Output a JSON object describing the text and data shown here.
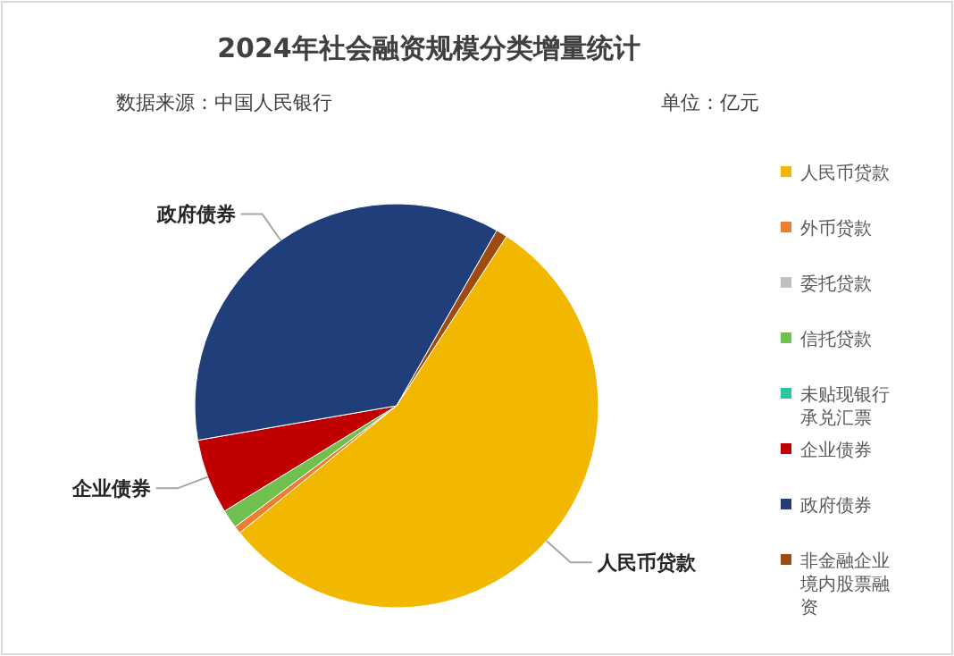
{
  "chart_data": {
    "type": "pie",
    "title": "2024年社会融资规模分类增量统计",
    "subtitle": "数据来源：中国人民银行",
    "annotations": [
      "单位：亿元"
    ],
    "categories": [
      "人民币贷款",
      "外币贷款",
      "委托贷款",
      "信托贷款",
      "未贴现银行承兑汇票",
      "企业债券",
      "政府债券",
      "非金融企业境内股票融资"
    ],
    "values": [
      55.0,
      0.6,
      0,
      1.5,
      0,
      6.0,
      36.0,
      0.9
    ],
    "colors": [
      "#f2b800",
      "#ed7d31",
      "#bfbfbf",
      "#70c050",
      "#2ec4a0",
      "#c00000",
      "#203f7a",
      "#9e4a10"
    ],
    "legend": "right"
  }
}
